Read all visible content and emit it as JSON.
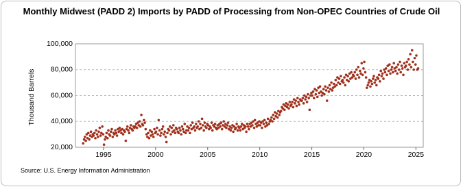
{
  "chart_data": {
    "type": "scatter",
    "title": "Monthly Midwest (PADD 2) Imports by PADD of Processing from Non-OPEC Countries of Crude Oil",
    "y_label": "Thousand Barrels",
    "source": "Source: U.S. Energy Information Administration",
    "color": "#a0301c",
    "grid": true,
    "xlim": [
      1992.3,
      2025.7
    ],
    "xticks": [
      1995,
      2000,
      2005,
      2010,
      2015,
      2020,
      2025
    ],
    "ylim": [
      20000,
      100000
    ],
    "yticks": [
      {
        "value": 20000,
        "label": "20,000"
      },
      {
        "value": 40000,
        "label": "40,000"
      },
      {
        "value": 60000,
        "label": "60,000"
      },
      {
        "value": 80000,
        "label": "80,000"
      },
      {
        "value": 100000,
        "label": "100,000"
      }
    ],
    "x": [
      1993.04,
      1993.13,
      1993.21,
      1993.29,
      1993.38,
      1993.46,
      1993.54,
      1993.63,
      1993.71,
      1993.79,
      1993.88,
      1993.96,
      1994.04,
      1994.13,
      1994.21,
      1994.29,
      1994.38,
      1994.46,
      1994.54,
      1994.63,
      1994.71,
      1994.79,
      1994.88,
      1994.96,
      1995.04,
      1995.13,
      1995.21,
      1995.29,
      1995.38,
      1995.46,
      1995.54,
      1995.63,
      1995.71,
      1995.79,
      1995.88,
      1995.96,
      1996.04,
      1996.13,
      1996.21,
      1996.29,
      1996.38,
      1996.46,
      1996.54,
      1996.63,
      1996.71,
      1996.79,
      1996.88,
      1996.96,
      1997.04,
      1997.13,
      1997.21,
      1997.29,
      1997.38,
      1997.46,
      1997.54,
      1997.63,
      1997.71,
      1997.79,
      1997.88,
      1997.96,
      1998.04,
      1998.13,
      1998.21,
      1998.29,
      1998.38,
      1998.46,
      1998.54,
      1998.63,
      1998.71,
      1998.79,
      1998.88,
      1998.96,
      1999.04,
      1999.13,
      1999.21,
      1999.29,
      1999.38,
      1999.46,
      1999.54,
      1999.63,
      1999.71,
      1999.79,
      1999.88,
      1999.96,
      2000.04,
      2000.13,
      2000.21,
      2000.29,
      2000.38,
      2000.46,
      2000.54,
      2000.63,
      2000.71,
      2000.79,
      2000.88,
      2000.96,
      2001.04,
      2001.13,
      2001.21,
      2001.29,
      2001.38,
      2001.46,
      2001.54,
      2001.63,
      2001.71,
      2001.79,
      2001.88,
      2001.96,
      2002.04,
      2002.13,
      2002.21,
      2002.29,
      2002.38,
      2002.46,
      2002.54,
      2002.63,
      2002.71,
      2002.79,
      2002.88,
      2002.96,
      2003.04,
      2003.13,
      2003.21,
      2003.29,
      2003.38,
      2003.46,
      2003.54,
      2003.63,
      2003.71,
      2003.79,
      2003.88,
      2003.96,
      2004.04,
      2004.13,
      2004.21,
      2004.29,
      2004.38,
      2004.46,
      2004.54,
      2004.63,
      2004.71,
      2004.79,
      2004.88,
      2004.96,
      2005.04,
      2005.13,
      2005.21,
      2005.29,
      2005.38,
      2005.46,
      2005.54,
      2005.63,
      2005.71,
      2005.79,
      2005.88,
      2005.96,
      2006.04,
      2006.13,
      2006.21,
      2006.29,
      2006.38,
      2006.46,
      2006.54,
      2006.63,
      2006.71,
      2006.79,
      2006.88,
      2006.96,
      2007.04,
      2007.13,
      2007.21,
      2007.29,
      2007.38,
      2007.46,
      2007.54,
      2007.63,
      2007.71,
      2007.79,
      2007.88,
      2007.96,
      2008.04,
      2008.13,
      2008.21,
      2008.29,
      2008.38,
      2008.46,
      2008.54,
      2008.63,
      2008.71,
      2008.79,
      2008.88,
      2008.96,
      2009.04,
      2009.13,
      2009.21,
      2009.29,
      2009.38,
      2009.46,
      2009.54,
      2009.63,
      2009.71,
      2009.79,
      2009.88,
      2009.96,
      2010.04,
      2010.13,
      2010.21,
      2010.29,
      2010.38,
      2010.46,
      2010.54,
      2010.63,
      2010.71,
      2010.79,
      2010.88,
      2010.96,
      2011.04,
      2011.13,
      2011.21,
      2011.29,
      2011.38,
      2011.46,
      2011.54,
      2011.63,
      2011.71,
      2011.79,
      2011.88,
      2011.96,
      2012.04,
      2012.13,
      2012.21,
      2012.29,
      2012.38,
      2012.46,
      2012.54,
      2012.63,
      2012.71,
      2012.79,
      2012.88,
      2012.96,
      2013.04,
      2013.13,
      2013.21,
      2013.29,
      2013.38,
      2013.46,
      2013.54,
      2013.63,
      2013.71,
      2013.79,
      2013.88,
      2013.96,
      2014.04,
      2014.13,
      2014.21,
      2014.29,
      2014.38,
      2014.46,
      2014.54,
      2014.63,
      2014.71,
      2014.79,
      2014.88,
      2014.96,
      2015.04,
      2015.13,
      2015.21,
      2015.29,
      2015.38,
      2015.46,
      2015.54,
      2015.63,
      2015.71,
      2015.79,
      2015.88,
      2015.96,
      2016.04,
      2016.13,
      2016.21,
      2016.29,
      2016.38,
      2016.46,
      2016.54,
      2016.63,
      2016.71,
      2016.79,
      2016.88,
      2016.96,
      2017.04,
      2017.13,
      2017.21,
      2017.29,
      2017.38,
      2017.46,
      2017.54,
      2017.63,
      2017.71,
      2017.79,
      2017.88,
      2017.96,
      2018.04,
      2018.13,
      2018.21,
      2018.29,
      2018.38,
      2018.46,
      2018.54,
      2018.63,
      2018.71,
      2018.79,
      2018.88,
      2018.96,
      2019.04,
      2019.13,
      2019.21,
      2019.29,
      2019.38,
      2019.46,
      2019.54,
      2019.63,
      2019.71,
      2019.79,
      2019.88,
      2019.96,
      2020.04,
      2020.13,
      2020.21,
      2020.29,
      2020.38,
      2020.46,
      2020.54,
      2020.63,
      2020.71,
      2020.79,
      2020.88,
      2020.96,
      2021.04,
      2021.13,
      2021.21,
      2021.29,
      2021.38,
      2021.46,
      2021.54,
      2021.63,
      2021.71,
      2021.79,
      2021.88,
      2021.96,
      2022.04,
      2022.13,
      2022.21,
      2022.29,
      2022.38,
      2022.46,
      2022.54,
      2022.63,
      2022.71,
      2022.79,
      2022.88,
      2022.96,
      2023.04,
      2023.13,
      2023.21,
      2023.29,
      2023.38,
      2023.46,
      2023.54,
      2023.63,
      2023.71,
      2023.79,
      2023.88,
      2023.96,
      2024.04,
      2024.13,
      2024.21,
      2024.29,
      2024.38,
      2024.46,
      2024.54,
      2024.63,
      2024.71,
      2024.79,
      2024.88,
      2024.96,
      2025.04,
      2025.13,
      2025.21
    ],
    "values": [
      23000,
      26000,
      28000,
      25000,
      30000,
      27000,
      31000,
      26000,
      29000,
      32000,
      28000,
      30000,
      29000,
      31000,
      27000,
      33000,
      30000,
      28000,
      32000,
      35000,
      29000,
      31000,
      36000,
      30000,
      22000,
      26000,
      28000,
      31000,
      27000,
      33000,
      30000,
      29000,
      32000,
      34000,
      28000,
      31000,
      30000,
      33000,
      31000,
      29000,
      34000,
      32000,
      35000,
      33000,
      31000,
      34000,
      30000,
      33000,
      32000,
      25000,
      34000,
      36000,
      33000,
      31000,
      35000,
      37000,
      34000,
      33000,
      36000,
      35000,
      36000,
      38000,
      35000,
      39000,
      37000,
      40000,
      36000,
      45000,
      38000,
      37000,
      41000,
      39000,
      34000,
      30000,
      28000,
      31000,
      27000,
      33000,
      29000,
      32000,
      30000,
      28000,
      34000,
      31000,
      32000,
      35000,
      30000,
      41000,
      33000,
      29000,
      31000,
      34000,
      36000,
      30000,
      32000,
      28000,
      24000,
      31000,
      34000,
      33000,
      36000,
      30000,
      35000,
      32000,
      37000,
      33000,
      31000,
      35000,
      34000,
      32000,
      31000,
      35000,
      33000,
      30000,
      36000,
      34000,
      32000,
      38000,
      31000,
      33000,
      36000,
      33000,
      35000,
      31000,
      37000,
      34000,
      39000,
      35000,
      36000,
      33000,
      38000,
      35000,
      36000,
      40000,
      34000,
      38000,
      35000,
      42000,
      37000,
      33000,
      39000,
      36000,
      35000,
      38000,
      37000,
      34000,
      36000,
      35000,
      39000,
      33000,
      37000,
      36000,
      38000,
      35000,
      34000,
      37000,
      35000,
      38000,
      36000,
      39000,
      34000,
      37000,
      40000,
      36000,
      38000,
      35000,
      37000,
      39000,
      34000,
      36000,
      33000,
      35000,
      37000,
      32000,
      36000,
      34000,
      35000,
      38000,
      33000,
      36000,
      35000,
      33000,
      36000,
      38000,
      34000,
      37000,
      35000,
      36000,
      32000,
      38000,
      36000,
      34000,
      38000,
      36000,
      39000,
      37000,
      40000,
      35000,
      41000,
      38000,
      36000,
      39000,
      37000,
      40000,
      37000,
      39000,
      35000,
      40000,
      38000,
      41000,
      36000,
      39000,
      37000,
      42000,
      38000,
      40000,
      41000,
      43000,
      40000,
      45000,
      42000,
      47000,
      44000,
      46000,
      43000,
      48000,
      45000,
      47000,
      48000,
      51000,
      50000,
      53000,
      49000,
      52000,
      54000,
      51000,
      53000,
      50000,
      55000,
      52000,
      53000,
      55000,
      51000,
      57000,
      54000,
      56000,
      52000,
      58000,
      55000,
      53000,
      57000,
      56000,
      56000,
      58000,
      54000,
      60000,
      57000,
      59000,
      55000,
      61000,
      58000,
      49000,
      60000,
      62000,
      60000,
      63000,
      58000,
      65000,
      61000,
      64000,
      59000,
      66000,
      62000,
      67000,
      63000,
      60000,
      62000,
      65000,
      61000,
      67000,
      64000,
      56000,
      66000,
      63000,
      68000,
      65000,
      70000,
      64000,
      66000,
      69000,
      67000,
      72000,
      68000,
      74000,
      70000,
      73000,
      69000,
      75000,
      71000,
      72000,
      70000,
      74000,
      68000,
      76000,
      72000,
      75000,
      71000,
      77000,
      73000,
      78000,
      74000,
      76000,
      75000,
      78000,
      73000,
      80000,
      76000,
      82000,
      74000,
      79000,
      77000,
      85000,
      76000,
      81000,
      86000,
      78000,
      74000,
      66000,
      68000,
      70000,
      72000,
      67000,
      71000,
      69000,
      73000,
      75000,
      70000,
      72000,
      68000,
      74000,
      73000,
      76000,
      71000,
      79000,
      75000,
      77000,
      73000,
      80000,
      78000,
      81000,
      76000,
      83000,
      79000,
      84000,
      77000,
      80000,
      82000,
      78000,
      85000,
      81000,
      79000,
      82000,
      77000,
      84000,
      80000,
      86000,
      78000,
      83000,
      81000,
      76000,
      85000,
      82000,
      83000,
      86000,
      80000,
      88000,
      84000,
      92000,
      82000,
      95000,
      86000,
      80000,
      89000,
      84000,
      91000,
      80000,
      81000
    ]
  }
}
